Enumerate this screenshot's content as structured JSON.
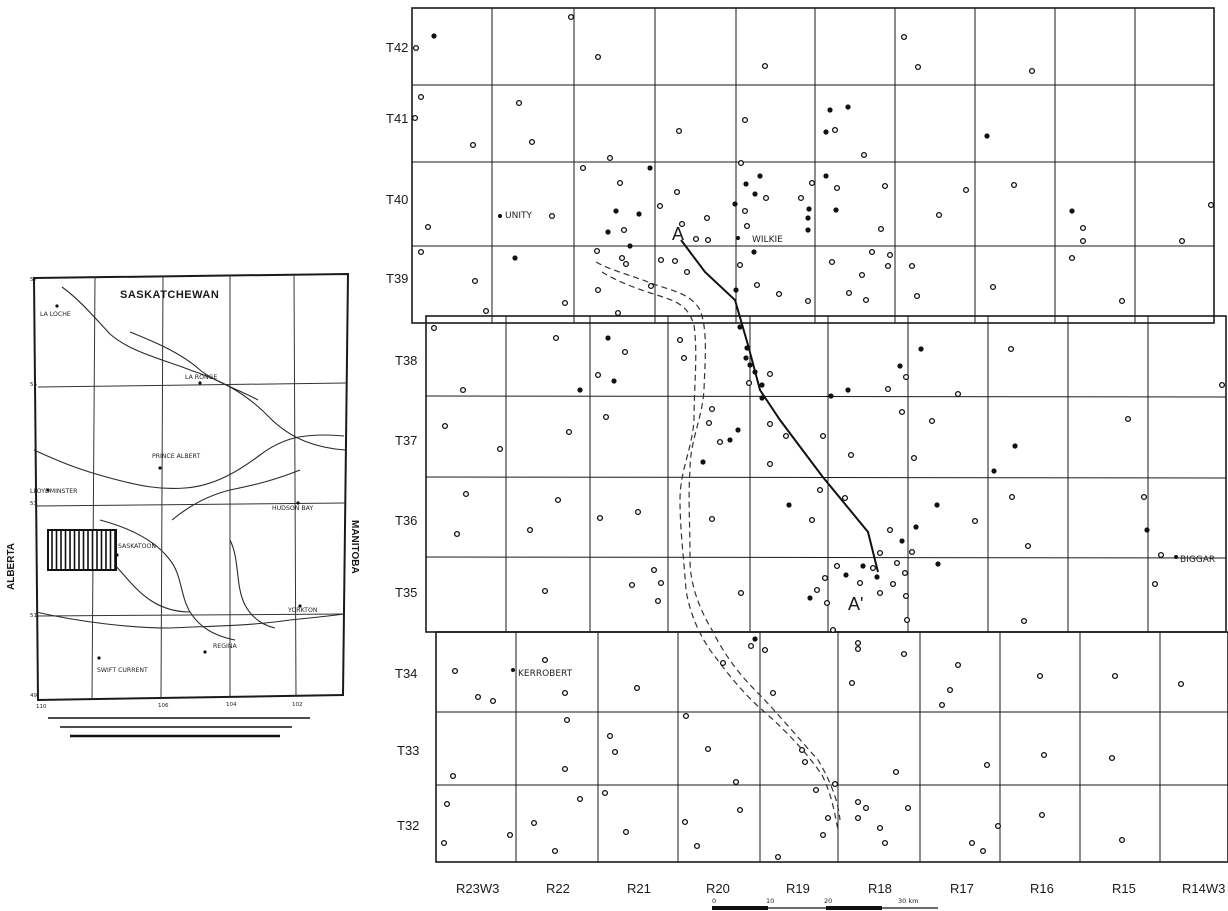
{
  "inset": {
    "province_name": "SASKATCHEWAN",
    "west_neighbor": "ALBERTA",
    "east_neighbor": "MANITOBA",
    "cities": [
      "LA LOCHE",
      "LA RONGE",
      "PRINCE ALBERT",
      "LLOYDMINSTER",
      "HUDSON BAY",
      "SASKATOON",
      "YORKTON",
      "REGINA",
      "SWIFT CURRENT"
    ],
    "latitudes": [
      "57",
      "55",
      "53",
      "51",
      "49"
    ],
    "longitudes": [
      "110",
      "106",
      "104",
      "102"
    ]
  },
  "main": {
    "townships": [
      "T42",
      "T41",
      "T40",
      "T39",
      "T38",
      "T37",
      "T36",
      "T35",
      "T34",
      "T33",
      "T32"
    ],
    "ranges": [
      "R23W3",
      "R22",
      "R21",
      "R20",
      "R19",
      "R18",
      "R17",
      "R16",
      "R15",
      "R14W3"
    ],
    "towns": [
      "UNITY",
      "WILKIE",
      "BIGGAR",
      "KERROBERT"
    ],
    "section_start": "A",
    "section_end": "A'",
    "scale_ticks": [
      "0",
      "10",
      "20",
      "30 km"
    ],
    "colors": {
      "ink": "#1a1a1a",
      "paper": "#ffffff"
    }
  }
}
